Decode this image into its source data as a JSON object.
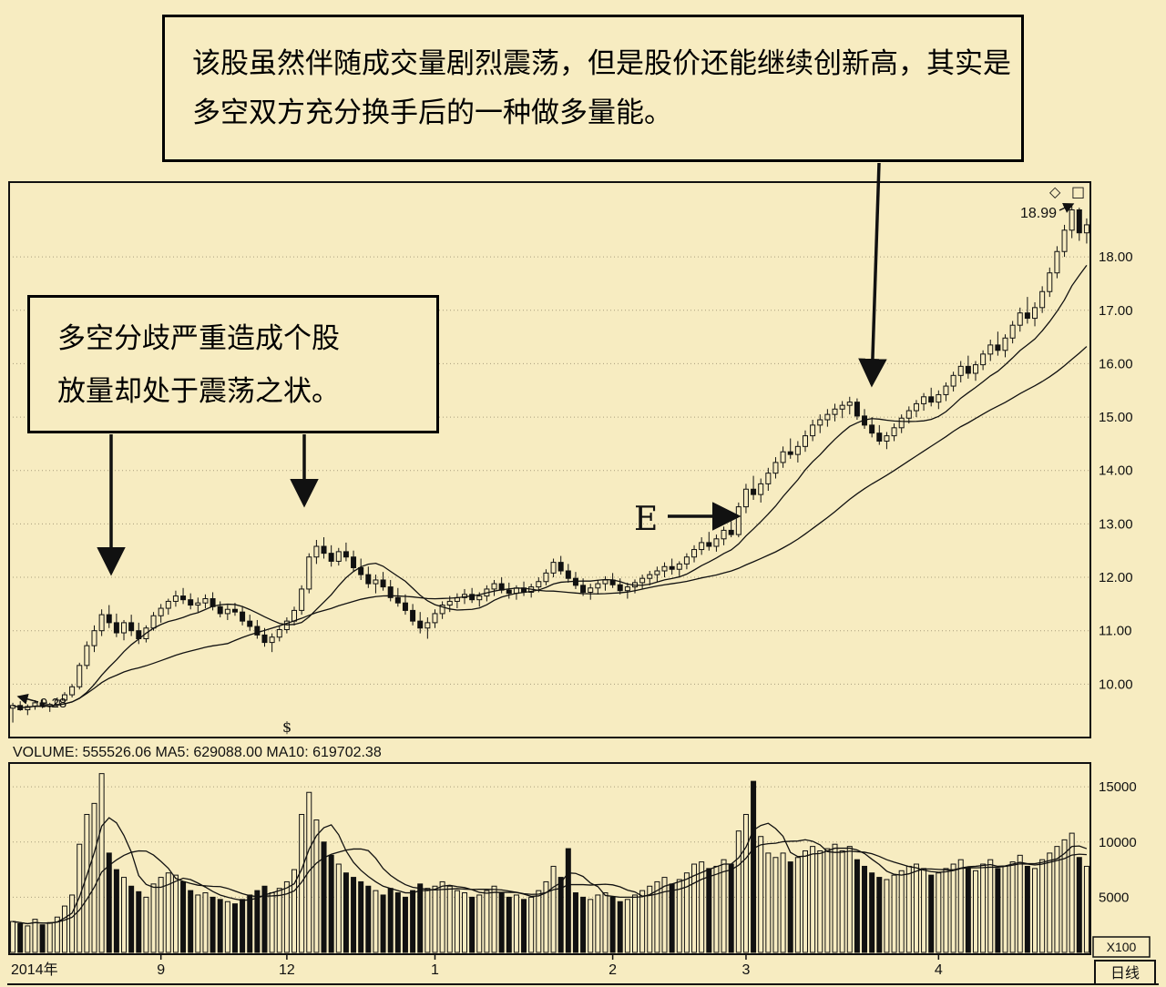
{
  "colors": {
    "background": "#f7ecc1",
    "ink": "#111111",
    "grid": "#6b6147"
  },
  "window": {
    "icons": {
      "diamond": "◇",
      "square": "□"
    },
    "period_label": "日线",
    "volume_unit_label": "X100"
  },
  "annotations": {
    "top_box": {
      "line1": "该股虽然伴随成交量剧烈震荡，但是股价还能继续创新高，其实是",
      "line2": "多空双方充分换手后的一种做多量能。"
    },
    "left_box": {
      "line1": "多空分歧严重造成个股",
      "line2": "放量却处于震荡之状。"
    },
    "e_label": "E",
    "peak_price_label": "18.99",
    "start_price_label": "9.28",
    "event_marker": "$"
  },
  "volume_header": {
    "volume": "VOLUME: 555526.06",
    "ma5": "MA5: 629088.00",
    "ma10": "MA10: 619702.38"
  },
  "axes": {
    "price_ticks": [
      18,
      17,
      16,
      15,
      14,
      13,
      12,
      11,
      10
    ],
    "price_tick_labels": [
      "18.00",
      "17.00",
      "16.00",
      "15.00",
      "14.00",
      "13.00",
      "12.00",
      "11.00",
      "10.00"
    ],
    "volume_ticks": [
      15000,
      10000,
      5000
    ],
    "volume_tick_labels": [
      "15000",
      "10000",
      "5000"
    ],
    "x_labels": [
      {
        "label": "2014年",
        "index": 0
      },
      {
        "label": "9",
        "index": 20
      },
      {
        "label": "12",
        "index": 37
      },
      {
        "label": "1",
        "index": 57
      },
      {
        "label": "2",
        "index": 81
      },
      {
        "label": "3",
        "index": 99
      },
      {
        "label": "4",
        "index": 125
      }
    ]
  },
  "chart_data": {
    "type": "candlestick",
    "panels": [
      "price",
      "volume"
    ],
    "price_range": [
      9.0,
      19.4
    ],
    "volume_range": [
      0,
      16500
    ],
    "price_ma_windows": [
      10,
      30
    ],
    "volume_ma_windows": [
      5,
      10
    ],
    "ohlcv": [
      [
        9.55,
        9.65,
        9.28,
        9.6,
        2800
      ],
      [
        9.6,
        9.68,
        9.5,
        9.52,
        2600
      ],
      [
        9.52,
        9.62,
        9.42,
        9.58,
        2400
      ],
      [
        9.58,
        9.7,
        9.52,
        9.65,
        3000
      ],
      [
        9.65,
        9.72,
        9.55,
        9.58,
        2500
      ],
      [
        9.58,
        9.65,
        9.48,
        9.62,
        2700
      ],
      [
        9.62,
        9.75,
        9.58,
        9.7,
        3200
      ],
      [
        9.7,
        9.85,
        9.65,
        9.8,
        4200
      ],
      [
        9.8,
        10.0,
        9.75,
        9.95,
        5200
      ],
      [
        9.95,
        10.4,
        9.9,
        10.35,
        9800
      ],
      [
        10.35,
        10.8,
        10.28,
        10.72,
        12500
      ],
      [
        10.72,
        11.1,
        10.6,
        11.0,
        13500
      ],
      [
        11.0,
        11.4,
        10.9,
        11.3,
        16200
      ],
      [
        11.3,
        11.48,
        11.05,
        11.15,
        9000
      ],
      [
        11.15,
        11.32,
        10.88,
        10.96,
        7500
      ],
      [
        10.96,
        11.2,
        10.82,
        11.15,
        6800
      ],
      [
        11.15,
        11.3,
        10.9,
        11.0,
        6000
      ],
      [
        11.0,
        11.15,
        10.75,
        10.85,
        5500
      ],
      [
        10.85,
        11.1,
        10.78,
        11.05,
        5000
      ],
      [
        11.05,
        11.35,
        11.0,
        11.28,
        6200
      ],
      [
        11.28,
        11.5,
        11.15,
        11.42,
        6800
      ],
      [
        11.42,
        11.6,
        11.3,
        11.55,
        7200
      ],
      [
        11.55,
        11.75,
        11.45,
        11.65,
        7000
      ],
      [
        11.65,
        11.8,
        11.5,
        11.58,
        6400
      ],
      [
        11.58,
        11.7,
        11.4,
        11.48,
        5600
      ],
      [
        11.48,
        11.62,
        11.35,
        11.52,
        5200
      ],
      [
        11.52,
        11.68,
        11.42,
        11.6,
        5400
      ],
      [
        11.6,
        11.72,
        11.38,
        11.45,
        5000
      ],
      [
        11.45,
        11.55,
        11.25,
        11.32,
        4800
      ],
      [
        11.32,
        11.48,
        11.2,
        11.4,
        4600
      ],
      [
        11.4,
        11.52,
        11.28,
        11.35,
        4400
      ],
      [
        11.35,
        11.45,
        11.1,
        11.18,
        4800
      ],
      [
        11.18,
        11.3,
        11.0,
        11.08,
        5200
      ],
      [
        11.08,
        11.2,
        10.85,
        10.92,
        5600
      ],
      [
        10.92,
        11.05,
        10.7,
        10.78,
        6000
      ],
      [
        10.78,
        10.95,
        10.6,
        10.88,
        5400
      ],
      [
        10.88,
        11.1,
        10.8,
        11.02,
        5800
      ],
      [
        11.02,
        11.25,
        10.95,
        11.18,
        6400
      ],
      [
        11.18,
        11.45,
        11.1,
        11.38,
        7500
      ],
      [
        11.38,
        11.85,
        11.3,
        11.78,
        12500
      ],
      [
        11.78,
        12.45,
        11.7,
        12.38,
        14500
      ],
      [
        12.38,
        12.7,
        12.25,
        12.58,
        12000
      ],
      [
        12.58,
        12.75,
        12.35,
        12.45,
        10000
      ],
      [
        12.45,
        12.6,
        12.2,
        12.3,
        8800
      ],
      [
        12.3,
        12.55,
        12.22,
        12.48,
        8000
      ],
      [
        12.48,
        12.65,
        12.3,
        12.38,
        7200
      ],
      [
        12.38,
        12.5,
        12.1,
        12.18,
        6800
      ],
      [
        12.18,
        12.35,
        11.95,
        12.05,
        6400
      ],
      [
        12.05,
        12.2,
        11.8,
        11.88,
        6000
      ],
      [
        11.88,
        12.05,
        11.7,
        11.95,
        5600
      ],
      [
        11.95,
        12.1,
        11.75,
        11.82,
        5200
      ],
      [
        11.82,
        11.95,
        11.55,
        11.62,
        5800
      ],
      [
        11.62,
        11.8,
        11.45,
        11.52,
        5400
      ],
      [
        11.52,
        11.68,
        11.3,
        11.38,
        5000
      ],
      [
        11.38,
        11.5,
        11.1,
        11.18,
        5600
      ],
      [
        11.18,
        11.35,
        10.95,
        11.05,
        6200
      ],
      [
        11.05,
        11.25,
        10.85,
        11.15,
        5800
      ],
      [
        11.15,
        11.4,
        11.05,
        11.32,
        6000
      ],
      [
        11.32,
        11.55,
        11.22,
        11.48,
        6400
      ],
      [
        11.48,
        11.65,
        11.35,
        11.55,
        6000
      ],
      [
        11.55,
        11.7,
        11.42,
        11.62,
        5600
      ],
      [
        11.62,
        11.78,
        11.5,
        11.68,
        5400
      ],
      [
        11.68,
        11.8,
        11.52,
        11.58,
        5000
      ],
      [
        11.58,
        11.72,
        11.45,
        11.65,
        5200
      ],
      [
        11.65,
        11.85,
        11.55,
        11.78,
        5600
      ],
      [
        11.78,
        11.95,
        11.65,
        11.88,
        6000
      ],
      [
        11.88,
        12.0,
        11.7,
        11.76,
        5400
      ],
      [
        11.76,
        11.9,
        11.6,
        11.7,
        5000
      ],
      [
        11.7,
        11.85,
        11.58,
        11.8,
        5200
      ],
      [
        11.8,
        11.92,
        11.65,
        11.72,
        4800
      ],
      [
        11.72,
        11.88,
        11.62,
        11.82,
        5000
      ],
      [
        11.82,
        12.0,
        11.72,
        11.92,
        5600
      ],
      [
        11.92,
        12.15,
        11.85,
        12.08,
        6400
      ],
      [
        12.08,
        12.35,
        12.0,
        12.28,
        7800
      ],
      [
        12.28,
        12.4,
        12.05,
        12.12,
        6800
      ],
      [
        12.12,
        12.25,
        11.9,
        11.98,
        9400
      ],
      [
        11.98,
        12.1,
        11.78,
        11.85,
        5400
      ],
      [
        11.85,
        11.98,
        11.65,
        11.72,
        5000
      ],
      [
        11.72,
        11.88,
        11.58,
        11.8,
        4800
      ],
      [
        11.8,
        11.95,
        11.68,
        11.88,
        5200
      ],
      [
        11.88,
        12.02,
        11.75,
        11.95,
        5400
      ],
      [
        11.95,
        12.08,
        11.8,
        11.86,
        5000
      ],
      [
        11.86,
        11.98,
        11.68,
        11.75,
        4600
      ],
      [
        11.75,
        11.9,
        11.6,
        11.82,
        4800
      ],
      [
        11.82,
        11.96,
        11.7,
        11.9,
        5200
      ],
      [
        11.9,
        12.05,
        11.78,
        11.98,
        5600
      ],
      [
        11.98,
        12.12,
        11.85,
        12.05,
        6000
      ],
      [
        12.05,
        12.2,
        11.92,
        12.12,
        6400
      ],
      [
        12.12,
        12.28,
        12.0,
        12.2,
        6800
      ],
      [
        12.2,
        12.35,
        12.05,
        12.15,
        6200
      ],
      [
        12.15,
        12.3,
        12.02,
        12.25,
        6600
      ],
      [
        12.25,
        12.45,
        12.15,
        12.38,
        7200
      ],
      [
        12.38,
        12.6,
        12.28,
        12.52,
        8000
      ],
      [
        12.52,
        12.75,
        12.42,
        12.65,
        8200
      ],
      [
        12.65,
        12.85,
        12.5,
        12.58,
        7600
      ],
      [
        12.58,
        12.8,
        12.48,
        12.72,
        7800
      ],
      [
        12.72,
        12.95,
        12.6,
        12.88,
        8400
      ],
      [
        12.88,
        13.05,
        12.75,
        12.8,
        8000
      ],
      [
        12.8,
        13.4,
        12.75,
        13.32,
        11000
      ],
      [
        13.32,
        13.75,
        13.2,
        13.65,
        12500
      ],
      [
        13.65,
        13.9,
        13.45,
        13.55,
        15500
      ],
      [
        13.55,
        13.85,
        13.4,
        13.75,
        10500
      ],
      [
        13.75,
        14.05,
        13.62,
        13.95,
        9000
      ],
      [
        13.95,
        14.25,
        13.85,
        14.15,
        8600
      ],
      [
        14.15,
        14.45,
        14.05,
        14.35,
        9000
      ],
      [
        14.35,
        14.6,
        14.22,
        14.3,
        8200
      ],
      [
        14.3,
        14.55,
        14.15,
        14.45,
        8600
      ],
      [
        14.45,
        14.75,
        14.35,
        14.65,
        9200
      ],
      [
        14.65,
        14.95,
        14.55,
        14.85,
        9600
      ],
      [
        14.85,
        15.05,
        14.7,
        14.95,
        9200
      ],
      [
        14.95,
        15.15,
        14.82,
        15.05,
        9400
      ],
      [
        15.05,
        15.25,
        14.92,
        15.15,
        9800
      ],
      [
        15.15,
        15.3,
        14.98,
        15.22,
        9200
      ],
      [
        15.22,
        15.38,
        15.05,
        15.28,
        9600
      ],
      [
        15.28,
        15.35,
        14.95,
        15.02,
        8400
      ],
      [
        15.02,
        15.15,
        14.78,
        14.85,
        7800
      ],
      [
        14.85,
        15.0,
        14.62,
        14.7,
        7200
      ],
      [
        14.7,
        14.85,
        14.48,
        14.55,
        6800
      ],
      [
        14.55,
        14.72,
        14.4,
        14.65,
        6600
      ],
      [
        14.65,
        14.88,
        14.55,
        14.8,
        7000
      ],
      [
        14.8,
        15.05,
        14.7,
        14.98,
        7400
      ],
      [
        14.98,
        15.2,
        14.88,
        15.12,
        7800
      ],
      [
        15.12,
        15.32,
        15.0,
        15.25,
        8000
      ],
      [
        15.25,
        15.45,
        15.12,
        15.38,
        7600
      ],
      [
        15.38,
        15.55,
        15.2,
        15.28,
        7000
      ],
      [
        15.28,
        15.5,
        15.15,
        15.42,
        7200
      ],
      [
        15.42,
        15.65,
        15.3,
        15.58,
        7600
      ],
      [
        15.58,
        15.85,
        15.48,
        15.78,
        8000
      ],
      [
        15.78,
        16.05,
        15.65,
        15.95,
        8400
      ],
      [
        15.95,
        16.15,
        15.72,
        15.82,
        7600
      ],
      [
        15.82,
        16.05,
        15.68,
        15.98,
        7400
      ],
      [
        15.98,
        16.25,
        15.88,
        16.18,
        8000
      ],
      [
        16.18,
        16.45,
        16.05,
        16.35,
        8400
      ],
      [
        16.35,
        16.6,
        16.15,
        16.25,
        7600
      ],
      [
        16.25,
        16.55,
        16.12,
        16.48,
        7800
      ],
      [
        16.48,
        16.8,
        16.38,
        16.72,
        8200
      ],
      [
        16.72,
        17.05,
        16.6,
        16.95,
        8800
      ],
      [
        16.95,
        17.25,
        16.75,
        16.85,
        7800
      ],
      [
        16.85,
        17.15,
        16.7,
        17.05,
        7600
      ],
      [
        17.05,
        17.45,
        16.95,
        17.35,
        8400
      ],
      [
        17.35,
        17.8,
        17.25,
        17.7,
        9000
      ],
      [
        17.7,
        18.2,
        17.6,
        18.1,
        9600
      ],
      [
        18.1,
        18.6,
        18.0,
        18.5,
        10200
      ],
      [
        18.5,
        18.99,
        18.35,
        18.88,
        10800
      ],
      [
        18.88,
        18.92,
        18.3,
        18.45,
        8600
      ],
      [
        18.45,
        18.72,
        18.25,
        18.6,
        7800
      ]
    ]
  }
}
